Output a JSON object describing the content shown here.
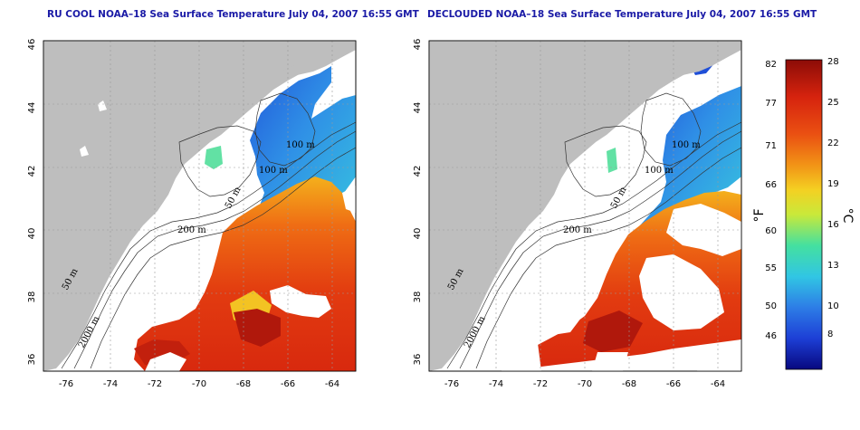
{
  "panels": [
    {
      "title": "RU COOL NOAA–18 Sea Surface Temperature July 04, 2007 16:55 GMT",
      "y_ticks": [
        "46",
        "44",
        "42",
        "40",
        "38",
        "36"
      ],
      "x_ticks": [
        "-76",
        "-74",
        "-72",
        "-70",
        "-68",
        "-66",
        "-64"
      ],
      "contour_labels": [
        "100 m",
        "100 m",
        "50 m",
        "200 m",
        "50 m",
        "2000 m"
      ]
    },
    {
      "title": "DECLOUDED NOAA–18 Sea Surface Temperature July 04, 2007 16:55 GMT",
      "y_ticks": [
        "46",
        "44",
        "42",
        "40",
        "38",
        "36"
      ],
      "x_ticks": [
        "-76",
        "-74",
        "-72",
        "-70",
        "-68",
        "-66",
        "-64"
      ],
      "contour_labels": [
        "100 m",
        "100 m",
        "50 m",
        "200 m",
        "50 m",
        "2000 m"
      ]
    }
  ],
  "colorbar": {
    "fahrenheit_ticks": [
      "82",
      "77",
      "71",
      "66",
      "60",
      "55",
      "50",
      "46"
    ],
    "celsius_ticks": [
      "28",
      "25",
      "22",
      "19",
      "16",
      "13",
      "10",
      "8"
    ],
    "fahrenheit_unit": "°F",
    "celsius_unit": "°C",
    "colors": [
      "#07087f",
      "#1d3fd6",
      "#2d7de6",
      "#31c6e4",
      "#44e0a0",
      "#c9e93a",
      "#f4d022",
      "#f29316",
      "#ea5012",
      "#d6230e",
      "#8c0c07"
    ]
  },
  "colors": {
    "land": "#bebebe",
    "ocean": "#ffffff",
    "title": "#1a1aa6"
  }
}
